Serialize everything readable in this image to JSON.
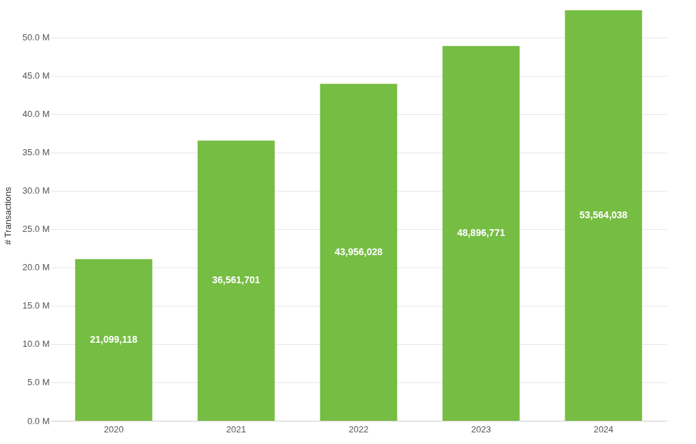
{
  "chart_data": {
    "type": "bar",
    "ylabel": "# Transactions",
    "categories": [
      "2020",
      "2021",
      "2022",
      "2023",
      "2024"
    ],
    "values": [
      21099118,
      36561701,
      43956028,
      48896771,
      53564038
    ],
    "value_labels": [
      "21,099,118",
      "36,561,701",
      "43,956,028",
      "48,896,771",
      "53,564,038"
    ],
    "color": "#76bd43",
    "ylim": [
      0,
      53564038
    ],
    "yticks": [
      {
        "value": 0,
        "label": "0.0 M"
      },
      {
        "value": 5000000,
        "label": "5.0 M"
      },
      {
        "value": 10000000,
        "label": "10.0 M"
      },
      {
        "value": 15000000,
        "label": "15.0 M"
      },
      {
        "value": 20000000,
        "label": "20.0 M"
      },
      {
        "value": 25000000,
        "label": "25.0 M"
      },
      {
        "value": 30000000,
        "label": "30.0 M"
      },
      {
        "value": 35000000,
        "label": "35.0 M"
      },
      {
        "value": 40000000,
        "label": "40.0 M"
      },
      {
        "value": 45000000,
        "label": "45.0 M"
      },
      {
        "value": 50000000,
        "label": "50.0 M"
      }
    ],
    "grid": "y"
  }
}
